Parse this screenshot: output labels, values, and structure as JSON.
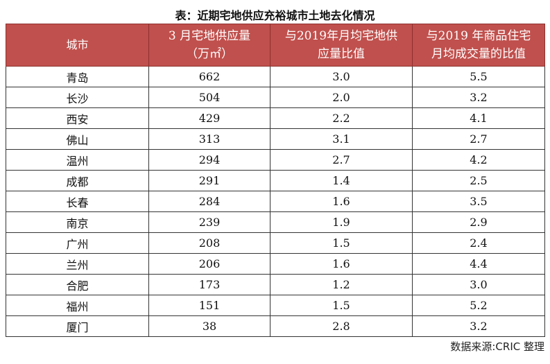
{
  "title": "表：近期宅地供应充裕城市土地去化情况",
  "headers": [
    "城市",
    "3 月宅地供应量\n（万㎡）",
    "与2019年月均宅地供\n应量比值",
    "与2019 年商品住宅\n月均成交量的比值"
  ],
  "rows": [
    {
      "city": "青岛",
      "supply": "662",
      "ratio_supply": "3.0",
      "ratio_sales": "5.5"
    },
    {
      "city": "长沙",
      "supply": "504",
      "ratio_supply": "2.0",
      "ratio_sales": "3.2"
    },
    {
      "city": "西安",
      "supply": "429",
      "ratio_supply": "2.2",
      "ratio_sales": "4.1"
    },
    {
      "city": "佛山",
      "supply": "313",
      "ratio_supply": "3.1",
      "ratio_sales": "2.7"
    },
    {
      "city": "温州",
      "supply": "294",
      "ratio_supply": "2.7",
      "ratio_sales": "4.2"
    },
    {
      "city": "成都",
      "supply": "291",
      "ratio_supply": "1.4",
      "ratio_sales": "2.5"
    },
    {
      "city": "长春",
      "supply": "284",
      "ratio_supply": "1.6",
      "ratio_sales": "3.5"
    },
    {
      "city": "南京",
      "supply": "239",
      "ratio_supply": "1.9",
      "ratio_sales": "2.9"
    },
    {
      "city": "广州",
      "supply": "208",
      "ratio_supply": "1.5",
      "ratio_sales": "2.4"
    },
    {
      "city": "兰州",
      "supply": "206",
      "ratio_supply": "1.6",
      "ratio_sales": "4.4"
    },
    {
      "city": "合肥",
      "supply": "173",
      "ratio_supply": "1.2",
      "ratio_sales": "3.0"
    },
    {
      "city": "福州",
      "supply": "151",
      "ratio_supply": "1.5",
      "ratio_sales": "5.2"
    },
    {
      "city": "厦门",
      "supply": "38",
      "ratio_supply": "2.8",
      "ratio_sales": "3.2"
    }
  ],
  "source": "数据来源:CRIC 整理",
  "colors": {
    "header_bg": "#c0504d",
    "header_text": "#ffffff",
    "border": "#333333"
  }
}
